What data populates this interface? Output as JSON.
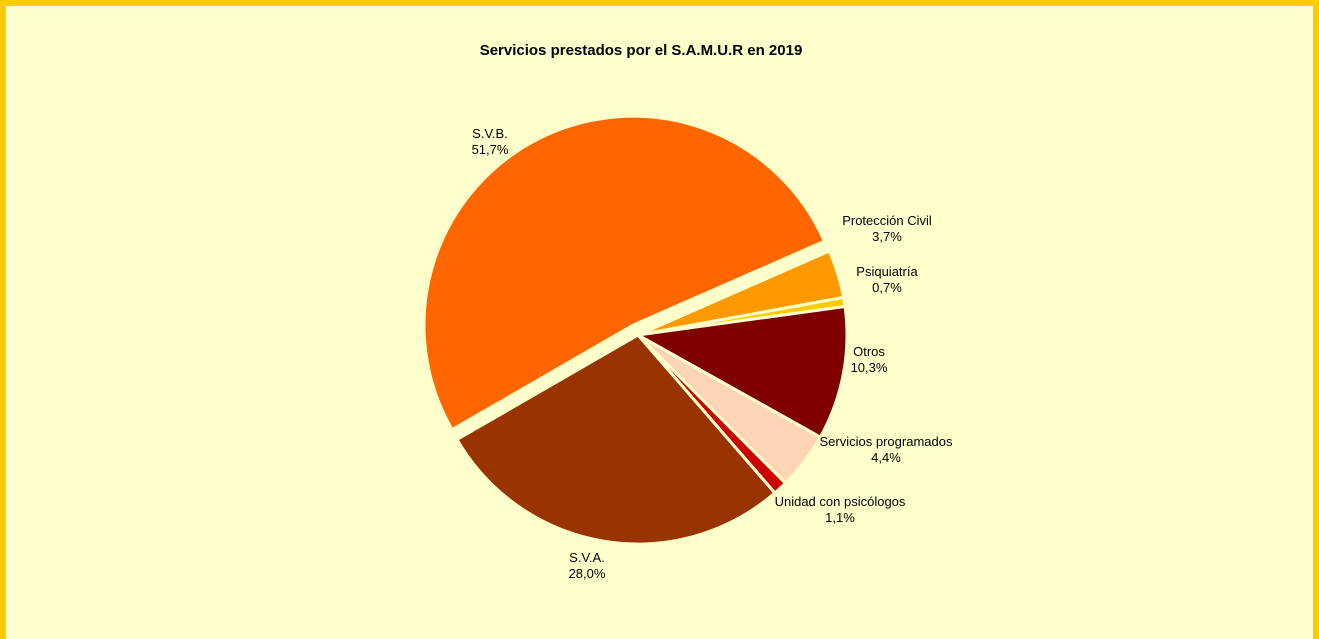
{
  "chart_data": {
    "type": "pie",
    "title": "Servicios prestados por el S.A.M.U.R en 2019",
    "slices": [
      {
        "label": "S.V.B.",
        "value": 51.7,
        "display": "51,7%",
        "color": "#ff6600",
        "exploded": true
      },
      {
        "label": "Protección Civil",
        "value": 3.7,
        "display": "3,7%",
        "color": "#ff9900",
        "exploded": false
      },
      {
        "label": "Psiquiatría",
        "value": 0.7,
        "display": "0,7%",
        "color": "#ffcc00",
        "exploded": false
      },
      {
        "label": "Otros",
        "value": 10.3,
        "display": "10,3%",
        "color": "#800000",
        "exploded": false
      },
      {
        "label": "Servicios programados",
        "value": 4.4,
        "display": "4,4%",
        "color": "#ffd5b5",
        "exploded": false
      },
      {
        "label": "Unidad con psicólogos",
        "value": 1.1,
        "display": "1,1%",
        "color": "#cc0000",
        "exploded": false
      },
      {
        "label": "S.V.A.",
        "value": 28.0,
        "display": "28,0%",
        "color": "#993300",
        "exploded": false
      }
    ]
  }
}
